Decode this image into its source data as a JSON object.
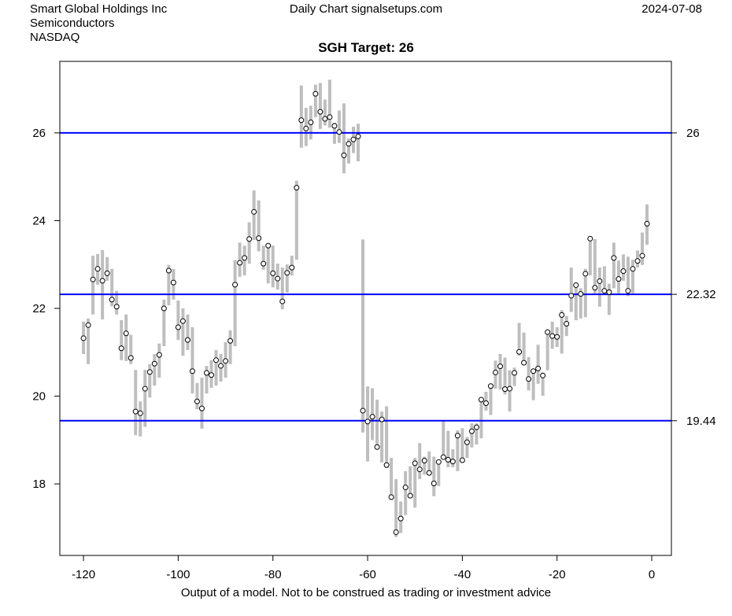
{
  "header": {
    "company": "Smart Global Holdings Inc",
    "sector": "Semiconductors",
    "exchange": "NASDAQ",
    "center": "Daily Chart signalsetups.com",
    "date": "2024-07-08"
  },
  "footer": "Output of a model. Not to be construed as trading or investment advice",
  "colors": {
    "bar": "#bebebe",
    "level": "#0000ff",
    "point_fill": "#ffffff",
    "point_stroke": "#000000"
  },
  "chart_data": {
    "type": "range-bar",
    "title": "SGH Target: 26",
    "xlabel": "",
    "ylabel": "",
    "xlim": [
      -125,
      4.15
    ],
    "ylim": [
      16.37,
      27.63
    ],
    "xticks": [
      -120,
      -100,
      -80,
      -60,
      -40,
      -20,
      0
    ],
    "yticks": [
      18,
      20,
      22,
      24,
      26
    ],
    "levels": [
      {
        "value": 26,
        "label": "26"
      },
      {
        "value": 22.32,
        "label": "22.32"
      },
      {
        "value": 19.44,
        "label": "19.44"
      }
    ],
    "x_start": -120,
    "close": [
      21.32,
      21.62,
      22.66,
      22.9,
      22.63,
      22.8,
      22.2,
      22.04,
      21.09,
      21.43,
      20.87,
      19.65,
      19.61,
      20.17,
      20.55,
      20.74,
      20.94,
      22.0,
      22.86,
      22.59,
      21.57,
      21.71,
      21.28,
      20.57,
      19.88,
      19.72,
      20.53,
      20.48,
      20.82,
      20.69,
      20.8,
      21.26,
      22.54,
      23.04,
      23.15,
      23.58,
      24.2,
      23.6,
      23.02,
      23.43,
      22.8,
      22.68,
      22.16,
      22.81,
      22.93,
      24.75,
      26.29,
      26.1,
      26.24,
      26.89,
      26.48,
      26.32,
      26.36,
      26.16,
      26.02,
      25.49,
      25.75,
      25.85,
      25.92,
      19.67,
      19.42,
      19.53,
      18.84,
      19.47,
      18.43,
      17.7,
      16.9,
      17.21,
      17.92,
      17.73,
      18.47,
      18.33,
      18.53,
      18.25,
      18.01,
      18.5,
      18.61,
      18.55,
      18.51,
      19.1,
      18.54,
      18.95,
      19.2,
      19.29,
      19.92,
      19.84,
      20.23,
      20.54,
      20.68,
      20.16,
      20.17,
      20.53,
      21.01,
      20.76,
      20.39,
      20.57,
      20.63,
      20.47,
      21.46,
      21.37,
      21.35,
      21.85,
      21.65,
      22.29,
      22.53,
      22.33,
      22.79,
      23.59,
      22.47,
      22.62,
      22.4,
      22.37,
      23.15,
      22.67,
      22.85,
      22.4,
      22.9,
      23.08,
      23.2,
      23.93
    ],
    "high": [
      21.7,
      21.77,
      23.2,
      23.24,
      23.33,
      23.17,
      22.9,
      22.4,
      21.73,
      21.86,
      21.4,
      20.6,
      19.88,
      20.6,
      20.73,
      20.96,
      21.2,
      22.2,
      22.99,
      22.9,
      22.18,
      22.0,
      21.86,
      21.57,
      20.3,
      20.42,
      20.69,
      20.82,
      21.05,
      20.96,
      21.23,
      21.5,
      23.1,
      23.5,
      23.43,
      23.96,
      24.69,
      24.46,
      23.43,
      23.47,
      23.43,
      23.02,
      22.93,
      23.0,
      23.2,
      24.91,
      27.08,
      26.57,
      26.62,
      27.1,
      27.14,
      26.76,
      27.21,
      26.23,
      26.51,
      26.67,
      25.87,
      26.14,
      26.21,
      23.57,
      20.22,
      20.18,
      19.92,
      19.65,
      19.77,
      18.59,
      18.11,
      17.6,
      18.29,
      18.4,
      18.59,
      18.93,
      18.62,
      18.74,
      18.62,
      18.55,
      19.45,
      19.21,
      18.79,
      19.22,
      19.27,
      19.07,
      19.38,
      19.38,
      19.97,
      20.1,
      20.29,
      20.81,
      20.96,
      20.88,
      20.59,
      20.65,
      21.67,
      21.45,
      20.89,
      20.62,
      21.17,
      20.54,
      21.51,
      21.7,
      21.57,
      21.96,
      21.83,
      22.93,
      22.59,
      22.46,
      22.9,
      23.64,
      23.58,
      22.93,
      22.96,
      22.56,
      23.5,
      23.09,
      23.23,
      23.18,
      23.11,
      23.32,
      23.73,
      24.37
    ],
    "low": [
      20.96,
      20.73,
      21.86,
      22.54,
      21.75,
      22.63,
      22.05,
      21.86,
      20.82,
      20.8,
      20.73,
      19.11,
      19.08,
      19.3,
      19.97,
      20.24,
      20.42,
      21.14,
      22.07,
      22.2,
      21.28,
      20.92,
      21.05,
      20.06,
      19.7,
      19.26,
      20.06,
      20.19,
      20.24,
      20.33,
      20.42,
      20.73,
      21.14,
      22.72,
      22.75,
      23.02,
      23.56,
      23.3,
      22.88,
      22.57,
      22.48,
      22.43,
      21.98,
      22.36,
      22.75,
      23.11,
      25.66,
      25.7,
      25.85,
      26.36,
      26.09,
      26.17,
      26.12,
      25.75,
      25.77,
      25.08,
      25.3,
      25.54,
      25.35,
      19.17,
      18.51,
      19.0,
      18.79,
      18.49,
      18.36,
      17.63,
      16.79,
      16.88,
      17.29,
      17.73,
      17.46,
      18.11,
      18.21,
      18.21,
      17.72,
      17.95,
      18.55,
      18.38,
      18.38,
      18.29,
      18.5,
      18.59,
      18.83,
      18.9,
      19.04,
      19.67,
      19.57,
      20.17,
      20.15,
      20.04,
      19.65,
      20.23,
      20.92,
      20.71,
      20.13,
      19.91,
      20.28,
      20.01,
      20.59,
      21.08,
      21.12,
      20.97,
      21.37,
      21.92,
      21.73,
      21.77,
      21.8,
      22.75,
      22.31,
      22.04,
      22.34,
      21.85,
      22.46,
      22.34,
      22.63,
      22.28,
      22.34,
      22.93,
      22.99,
      23.45
    ]
  }
}
